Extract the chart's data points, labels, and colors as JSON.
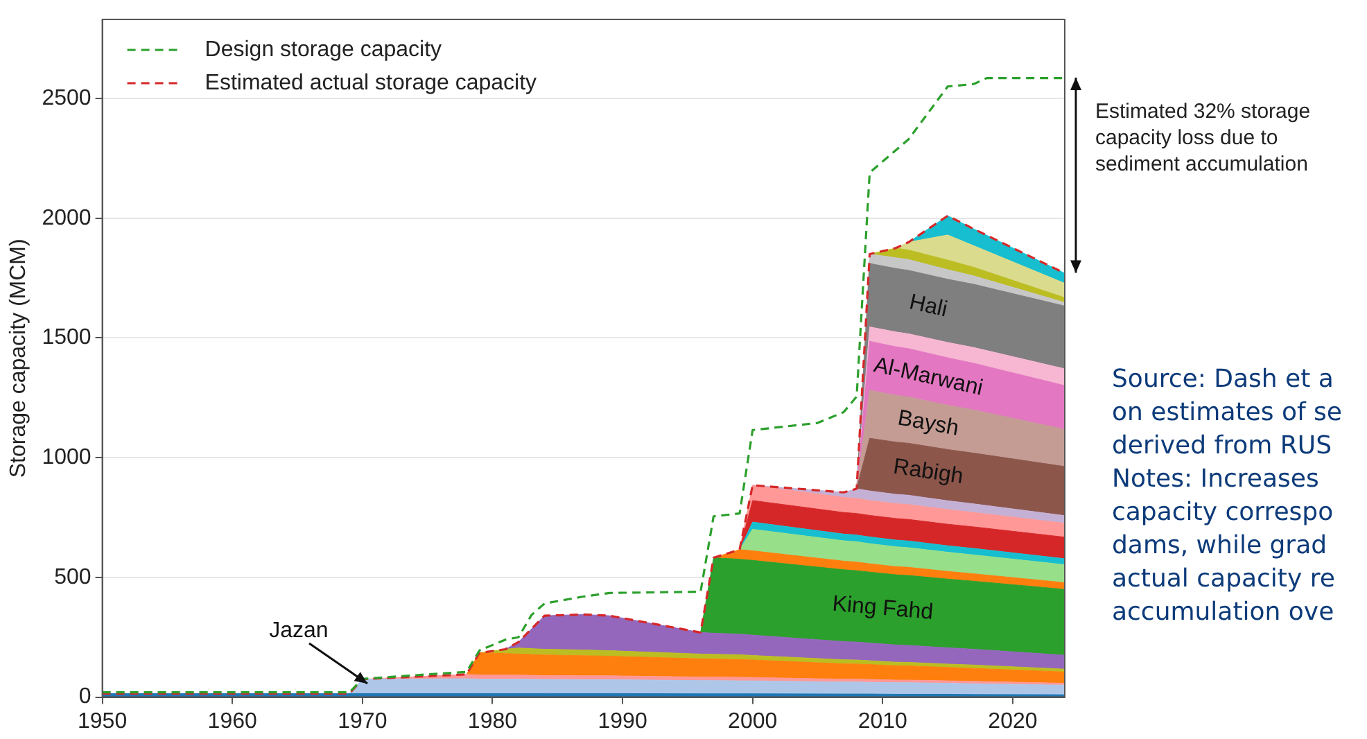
{
  "chart_data": {
    "type": "area",
    "stacked": true,
    "ylabel": "Storage capacity (MCM)",
    "xlim": [
      1950,
      2024
    ],
    "xticks": [
      1950,
      1960,
      1970,
      1980,
      1990,
      2000,
      2010,
      2020
    ],
    "ylim": [
      0,
      2830
    ],
    "yticks": [
      0,
      500,
      1000,
      1500,
      2000,
      2500
    ],
    "grid": "y",
    "legend": "top left",
    "marker": "none",
    "x": [
      1950,
      1969,
      1970,
      1978,
      1979,
      1981,
      1982,
      1984,
      1987,
      1989,
      1996,
      1997,
      1999,
      2000,
      2007,
      2008,
      2009,
      2011,
      2012,
      2015,
      2017,
      2024
    ],
    "series": [
      {
        "color": "#1f77b4",
        "values": [
          15,
          15,
          15,
          15,
          15,
          15,
          15,
          15,
          15,
          15,
          14,
          14,
          14,
          14,
          13,
          13,
          13,
          12,
          12,
          12,
          11,
          10
        ]
      },
      {
        "name": "Jazan",
        "color": "#aec7e8",
        "values": [
          null,
          0,
          60,
          62,
          60,
          60,
          60,
          59,
          58,
          58,
          55,
          55,
          54,
          54,
          50,
          50,
          49,
          48,
          48,
          46,
          45,
          40
        ]
      },
      {
        "color": "#ff9896",
        "values": [
          null,
          null,
          0,
          18,
          17,
          17,
          17,
          16,
          16,
          16,
          15,
          15,
          15,
          14,
          12,
          12,
          12,
          11,
          11,
          10,
          10,
          8
        ]
      },
      {
        "color": "#ff7f0e",
        "values": [
          null,
          null,
          null,
          0,
          93,
          90,
          88,
          86,
          84,
          82,
          76,
          75,
          74,
          73,
          64,
          63,
          62,
          60,
          59,
          56,
          54,
          47
        ]
      },
      {
        "color": "#bcbd22",
        "values": [
          null,
          null,
          null,
          null,
          0,
          18,
          25,
          24,
          24,
          23,
          20,
          20,
          20,
          19,
          17,
          17,
          16,
          15,
          15,
          14,
          14,
          12
        ]
      },
      {
        "color": "#9467bd",
        "values": [
          null,
          null,
          null,
          null,
          null,
          0,
          25,
          140,
          148,
          146,
          90,
          88,
          86,
          85,
          76,
          75,
          74,
          72,
          71,
          68,
          66,
          58
        ]
      },
      {
        "name": "King Fahd",
        "color": "#2ca02c",
        "values": [
          null,
          null,
          null,
          null,
          null,
          null,
          null,
          null,
          null,
          null,
          0,
          315,
          313,
          312,
          300,
          298,
          296,
          293,
          292,
          287,
          284,
          275
        ]
      },
      {
        "color": "#ff7f0e",
        "values": [
          null,
          null,
          null,
          null,
          null,
          null,
          null,
          null,
          null,
          null,
          null,
          0,
          40,
          40,
          36,
          36,
          35,
          34,
          34,
          32,
          31,
          28
        ]
      },
      {
        "color": "#98df8a",
        "values": [
          null,
          null,
          null,
          null,
          null,
          null,
          null,
          null,
          null,
          null,
          null,
          null,
          0,
          90,
          85,
          85,
          84,
          83,
          82,
          80,
          79,
          75
        ]
      },
      {
        "color": "#17becf",
        "values": [
          null,
          null,
          null,
          null,
          null,
          null,
          null,
          null,
          null,
          null,
          null,
          null,
          0,
          30,
          28,
          28,
          28,
          28,
          28,
          27,
          27,
          25
        ]
      },
      {
        "color": "#d62728",
        "values": [
          null,
          null,
          null,
          null,
          null,
          null,
          null,
          null,
          null,
          null,
          null,
          null,
          0,
          90,
          90,
          90,
          90,
          90,
          90,
          90,
          90,
          90
        ]
      },
      {
        "color": "#ff9896",
        "values": [
          null,
          null,
          null,
          null,
          null,
          null,
          null,
          null,
          null,
          null,
          null,
          null,
          0,
          64,
          63,
          63,
          62,
          62,
          62,
          61,
          60,
          58
        ]
      },
      {
        "color": "#c5b0d5",
        "values": [
          null,
          null,
          null,
          null,
          null,
          null,
          null,
          null,
          null,
          null,
          null,
          null,
          null,
          0,
          21,
          40,
          40,
          39,
          39,
          37,
          36,
          32
        ]
      },
      {
        "name": "Rabigh",
        "color": "#8c564b",
        "values": [
          null,
          null,
          null,
          null,
          null,
          null,
          null,
          null,
          null,
          null,
          null,
          null,
          null,
          null,
          null,
          0,
          220,
          218,
          217,
          214,
          212,
          205
        ]
      },
      {
        "name": "Baysh",
        "color": "#c49c94",
        "values": [
          null,
          null,
          null,
          null,
          null,
          null,
          null,
          null,
          null,
          null,
          null,
          null,
          null,
          null,
          null,
          0,
          200,
          195,
          193,
          185,
          180,
          155
        ]
      },
      {
        "name": "Al-Marwani",
        "color": "#e377c2",
        "values": [
          null,
          null,
          null,
          null,
          null,
          null,
          null,
          null,
          null,
          null,
          null,
          null,
          null,
          null,
          null,
          0,
          205,
          203,
          202,
          198,
          195,
          183
        ]
      },
      {
        "color": "#f7b6d2",
        "values": [
          null,
          null,
          null,
          null,
          null,
          null,
          null,
          null,
          null,
          null,
          null,
          null,
          null,
          null,
          null,
          0,
          60,
          62,
          62,
          64,
          66,
          70
        ]
      },
      {
        "name": "Hali",
        "color": "#7f7f7f",
        "values": [
          null,
          null,
          null,
          null,
          null,
          null,
          null,
          null,
          null,
          null,
          null,
          null,
          null,
          null,
          null,
          0,
          265,
          265,
          265,
          264,
          264,
          262
        ]
      },
      {
        "color": "#c7c7c7",
        "values": [
          null,
          null,
          null,
          null,
          null,
          null,
          null,
          null,
          null,
          null,
          null,
          null,
          null,
          null,
          null,
          0,
          39,
          45,
          45,
          40,
          35,
          15
        ]
      },
      {
        "color": "#bcbd22",
        "values": [
          null,
          null,
          null,
          null,
          null,
          null,
          null,
          null,
          null,
          null,
          null,
          null,
          null,
          null,
          null,
          null,
          0,
          40,
          40,
          40,
          36,
          20
        ]
      },
      {
        "color": "#dbdb8d",
        "values": [
          null,
          null,
          null,
          null,
          null,
          null,
          null,
          null,
          null,
          null,
          null,
          null,
          null,
          null,
          null,
          null,
          null,
          0,
          33,
          105,
          90,
          60
        ]
      },
      {
        "color": "#17becf",
        "values": [
          null,
          null,
          null,
          null,
          null,
          null,
          null,
          null,
          null,
          null,
          null,
          null,
          null,
          null,
          null,
          null,
          null,
          null,
          0,
          80,
          70,
          42
        ]
      },
      {
        "name": "Design storage capacity",
        "type": "line",
        "line_style": "dashed",
        "color": "#2ca02c",
        "x": [
          1950,
          1969,
          1970,
          1975,
          1978,
          1979,
          1981,
          1982,
          1983,
          1984,
          1987,
          1989,
          1996,
          1997,
          1999,
          2000,
          2005,
          2007,
          2008,
          2009,
          2012,
          2015,
          2017,
          2018,
          2024
        ],
        "values": [
          20,
          20,
          76,
          95,
          105,
          195,
          240,
          250,
          343,
          391,
          420,
          435,
          440,
          755,
          767,
          1115,
          1145,
          1190,
          1255,
          2190,
          2330,
          2550,
          2560,
          2585,
          2585
        ]
      },
      {
        "name": "Estimated actual storage capacity",
        "type": "line",
        "line_style": "dashed",
        "color": "#d62728",
        "x": [
          1950,
          1969,
          1970,
          1978,
          1979,
          1981,
          1982,
          1984,
          1987,
          1989,
          1996,
          1997,
          1999,
          2000,
          2007,
          2008,
          2009,
          2011,
          2012,
          2015,
          2017,
          2024
        ],
        "values": [
          15,
          15,
          75,
          95,
          185,
          200,
          230,
          340,
          345,
          340,
          270,
          582,
          616,
          885,
          855,
          870,
          1850,
          1875,
          1900,
          2010,
          1955,
          1770
        ]
      }
    ],
    "annotations": [
      "Estimated 32% storage\ncapacity loss due to\nsediment accumulation",
      "Source: Dash et a\non estimates of se\nderived from RUS",
      "Notes: Increases\ncapacity correspo\ndams, while grad\nactual capacity re\naccumulation ove"
    ]
  }
}
